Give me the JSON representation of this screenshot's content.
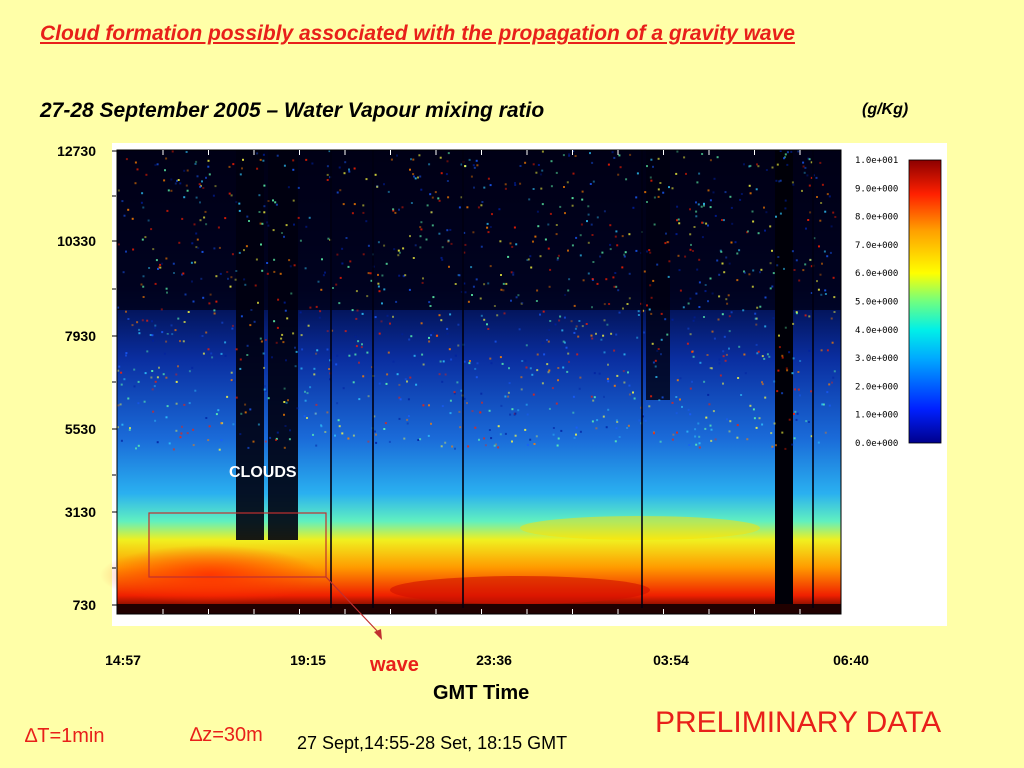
{
  "slide": {
    "title": "Cloud formation possibly associated with the propagation of a gravity wave",
    "preliminary": "PRELIMINARY DATA",
    "delta_t": "∆T=1min",
    "delta_z": "∆z=30m",
    "period": "27 Sept,14:55-28 Set, 18:15 GMT"
  },
  "annotations": {
    "clouds": "CLOUDS",
    "wave": "wave"
  },
  "chart_data": {
    "type": "heatmap",
    "title": "27-28 September 2005 – Water Vapour mixing ratio",
    "xlabel": "GMT Time",
    "ylabel": "",
    "units": "(g/Kg)",
    "x_tick_labels": [
      "14:57",
      "19:15",
      "23:36",
      "03:54",
      "06:40"
    ],
    "y_tick_labels": [
      "12730",
      "10330",
      "7930",
      "5530",
      "3130",
      "730"
    ],
    "y_range": [
      730,
      12730
    ],
    "colorbar": {
      "labels": [
        "1.0e+001",
        "9.0e+000",
        "8.0e+000",
        "7.0e+000",
        "6.0e+000",
        "5.0e+000",
        "4.0e+000",
        "3.0e+000",
        "2.0e+000",
        "1.0e+000",
        "0.0e+000"
      ],
      "range": [
        0,
        10
      ]
    }
  },
  "colors": {
    "background": "#ffffa8",
    "title": "#e8201a",
    "annotation_box": "#c03030"
  }
}
